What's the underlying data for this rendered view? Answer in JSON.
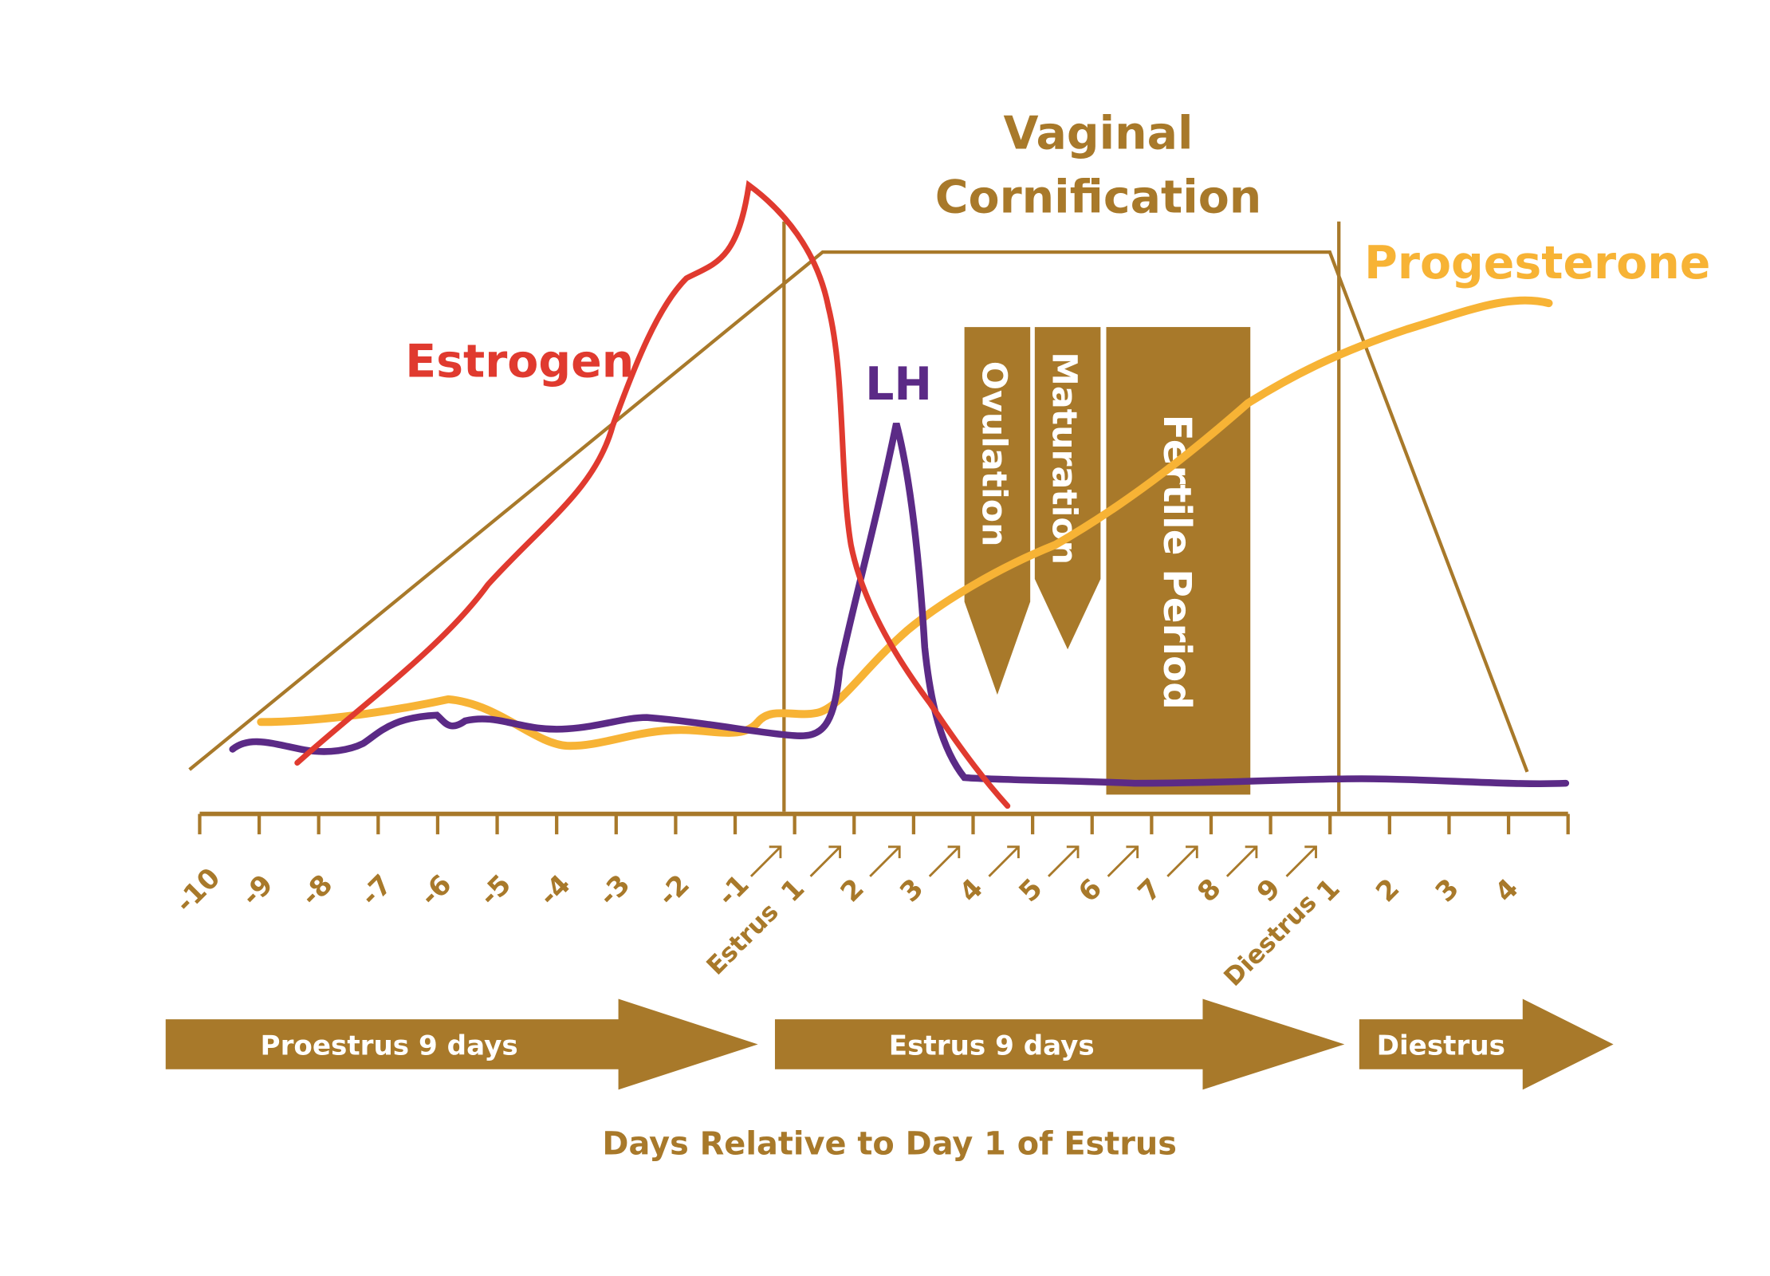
{
  "curve_labels": {
    "estrogen": "Estrogen",
    "lh": "LH",
    "progesterone": "Progesterone"
  },
  "cornification": [
    "Vaginal",
    "Cornification"
  ],
  "boxes": [
    "Ovulation",
    "Maturation",
    "Fertile Period"
  ],
  "day_ticks": [
    "-10",
    "-9",
    "-8",
    "-7",
    "-6",
    "-5",
    "-4",
    "-3",
    "-2",
    "-1",
    "1",
    "2",
    "3",
    "4",
    "5",
    "6",
    "7",
    "8",
    "9",
    "1",
    "2",
    "3",
    "4"
  ],
  "phase_markers": [
    "Estrus",
    "Diestrus"
  ],
  "phases": [
    "Proestrus 9 days",
    "Estrus 9 days",
    "Diestrus"
  ],
  "x_axis_label": "Days Relative to Day 1 of Estrus"
}
